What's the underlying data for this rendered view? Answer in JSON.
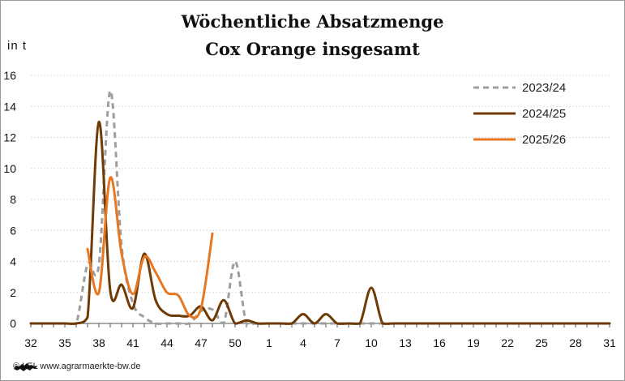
{
  "chart_data": {
    "type": "line",
    "title": "Wöchentliche Absatzmenge",
    "subtitle": "Cox Orange  insgesamt",
    "ylabel": "in  t",
    "xlabel": "",
    "ylim": [
      0,
      16
    ],
    "yticks": [
      "0",
      "2",
      "4",
      "6",
      "8",
      "10",
      "12",
      "14",
      "16"
    ],
    "x_tick_labels": [
      "32",
      "35",
      "38",
      "41",
      "44",
      "47",
      "50",
      "1",
      "4",
      "7",
      "10",
      "13",
      "16",
      "19",
      "22",
      "25",
      "28",
      "31"
    ],
    "x_weeks": [
      "32",
      "33",
      "34",
      "35",
      "36",
      "37",
      "38",
      "39",
      "40",
      "41",
      "42",
      "43",
      "44",
      "45",
      "46",
      "47",
      "48",
      "49",
      "50",
      "51",
      "52",
      "1",
      "2",
      "3",
      "4",
      "5",
      "6",
      "7",
      "8",
      "9",
      "10",
      "11",
      "12",
      "13",
      "14",
      "15",
      "16",
      "17",
      "18",
      "19",
      "20",
      "21",
      "22",
      "23",
      "24",
      "25",
      "26",
      "27",
      "28",
      "29",
      "30",
      "31"
    ],
    "grid": true,
    "legend_position": "top-right",
    "series": [
      {
        "name": "2023/24",
        "color": "#9e9e9e",
        "dash": true,
        "values": [
          0,
          0,
          0,
          0,
          0,
          3.8,
          3.8,
          15,
          5,
          1.3,
          0.4,
          0,
          0,
          0,
          0,
          0.8,
          0.9,
          0,
          4,
          0,
          0,
          0,
          0,
          0,
          0,
          0,
          0,
          0,
          0,
          0,
          0,
          0,
          0,
          0,
          0,
          0,
          0,
          0,
          0,
          0,
          0,
          0,
          0,
          0,
          0,
          0,
          0,
          0,
          0,
          0,
          0,
          0
        ]
      },
      {
        "name": "2024/25",
        "color": "#6e3a05",
        "dash": false,
        "values": [
          0,
          0,
          0,
          0,
          0,
          0.4,
          13,
          2.1,
          2.5,
          1,
          4.5,
          1.5,
          0.6,
          0.5,
          0.5,
          1.1,
          0.2,
          1.5,
          0,
          0.2,
          0,
          0,
          0,
          0,
          0.6,
          0,
          0.6,
          0,
          0,
          0,
          2.3,
          0,
          0,
          0,
          0,
          0,
          0,
          0,
          0,
          0,
          0,
          0,
          0,
          0,
          0,
          0,
          0,
          0,
          0,
          0,
          0,
          0
        ]
      },
      {
        "name": "2025/26",
        "color": "#e87722",
        "dash": false,
        "values": [
          null,
          null,
          null,
          null,
          null,
          4.8,
          2,
          9.4,
          4.5,
          1.9,
          4.3,
          3.3,
          2,
          1.8,
          0.5,
          1,
          5.8,
          null,
          null,
          null,
          null,
          null,
          null,
          null,
          null,
          null,
          null,
          null,
          null,
          null,
          null,
          null,
          null,
          null,
          null,
          null,
          null,
          null,
          null,
          null,
          null,
          null,
          null,
          null,
          null,
          null,
          null,
          null,
          null,
          null,
          null,
          null
        ]
      }
    ]
  },
  "footer": {
    "text": "© LEL www.agrarmaerkte-bw.de"
  },
  "icons": {
    "logo": "lion-coat-of-arms-icon"
  }
}
